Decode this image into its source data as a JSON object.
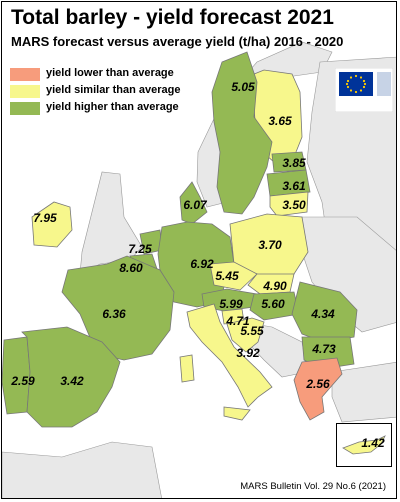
{
  "map": {
    "title": "Total barley - yield forecast 2021",
    "subtitle": "MARS forecast versus average yield (t/ha) 2016 - 2020",
    "footer": "MARS Bulletin Vol. 29 No.6 (2021)",
    "logo_text": "European Commission",
    "colors": {
      "lower": "#f79c7c",
      "similar": "#f7f78c",
      "higher": "#94b954",
      "sea": "#ffffff",
      "nonEU": "#e8e8e8",
      "border": "#777777"
    },
    "legend": [
      {
        "label": "yield lower than average",
        "color": "#f79c7c"
      },
      {
        "label": "yield similar than average",
        "color": "#f7f78c"
      },
      {
        "label": "yield higher than average",
        "color": "#94b954"
      }
    ],
    "values": [
      {
        "country": "Finland",
        "value": "5.05"
      },
      {
        "country": "Sweden",
        "value": "3.65"
      },
      {
        "country": "Estonia",
        "value": "3.85"
      },
      {
        "country": "Latvia",
        "value": "3.61"
      },
      {
        "country": "Lithuania",
        "value": "3.50"
      },
      {
        "country": "Denmark",
        "value": "6.07"
      },
      {
        "country": "Ireland",
        "value": "7.95"
      },
      {
        "country": "Netherlands",
        "value": "7.25"
      },
      {
        "country": "Belgium",
        "value": "8.60"
      },
      {
        "country": "Germany",
        "value": "6.92"
      },
      {
        "country": "Poland",
        "value": "3.70"
      },
      {
        "country": "Czechia",
        "value": "5.45"
      },
      {
        "country": "Slovakia",
        "value": "4.90"
      },
      {
        "country": "Austria",
        "value": "5.99"
      },
      {
        "country": "Hungary",
        "value": "5.60"
      },
      {
        "country": "Slovenia",
        "value": "4.71"
      },
      {
        "country": "Croatia",
        "value": "5.55"
      },
      {
        "country": "France",
        "value": "6.36"
      },
      {
        "country": "Romania",
        "value": "4.34"
      },
      {
        "country": "Bulgaria",
        "value": "4.73"
      },
      {
        "country": "Italy",
        "value": "3.92"
      },
      {
        "country": "Portugal",
        "value": "2.59"
      },
      {
        "country": "Spain",
        "value": "3.42"
      },
      {
        "country": "Greece",
        "value": "2.56"
      },
      {
        "country": "Cyprus",
        "value": "1.42"
      }
    ]
  }
}
